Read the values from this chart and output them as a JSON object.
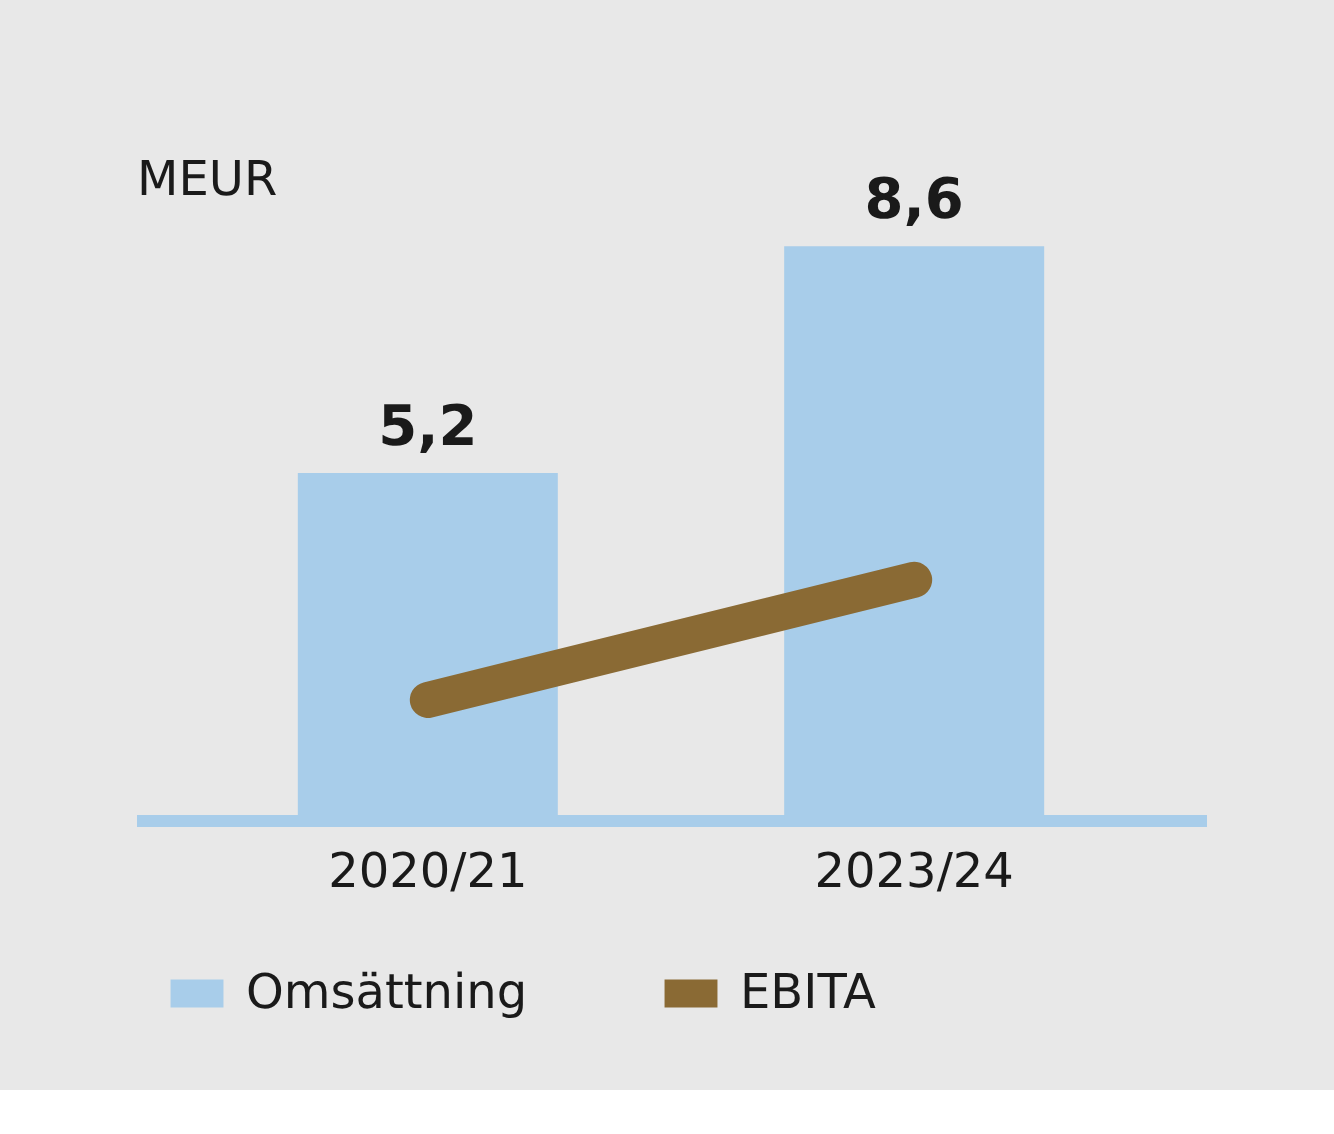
{
  "chart_data": {
    "type": "bar",
    "ylabel": "MEUR",
    "categories": [
      "2020/21",
      "2023/24"
    ],
    "series": [
      {
        "name": "Omsättning",
        "color": "#a8cdea",
        "values": [
          5.2,
          8.6
        ],
        "value_labels": [
          "5,2",
          "8,6"
        ]
      },
      {
        "name": "EBITA",
        "type": "line",
        "color": "#8a6a34",
        "values": [
          1.8,
          3.6
        ]
      }
    ],
    "legend": "bottom",
    "grid": false
  }
}
